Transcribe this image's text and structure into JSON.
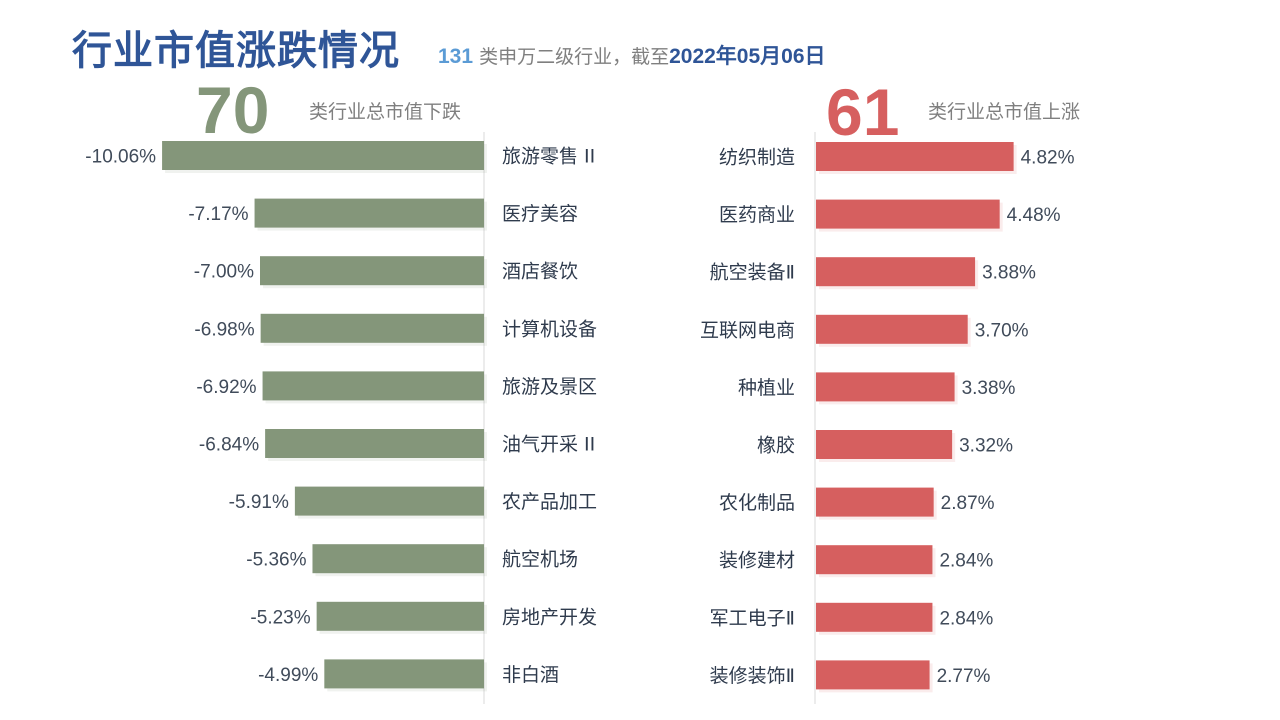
{
  "header": {
    "title": "行业市值涨跌情况",
    "count": "131",
    "subtitle_mid": " 类申万二级行业，截至",
    "date": "2022年05月06日"
  },
  "summary": {
    "down_count": "70",
    "down_caption": "类行业总市值下跌",
    "up_count": "61",
    "up_caption": "类行业总市值上涨"
  },
  "colors": {
    "title": "#2f5597",
    "down_bar": "#84967a",
    "up_bar": "#d65f5f"
  },
  "chart_data": [
    {
      "type": "bar",
      "orientation": "horizontal",
      "categories": [
        "旅游零售 II",
        "医疗美容",
        "酒店餐饮",
        "计算机设备",
        "旅游及景区",
        "油气开采 II",
        "农产品加工",
        "航空机场",
        "房地产开发",
        "非白酒"
      ],
      "values": [
        -10.06,
        -7.17,
        -7.0,
        -6.98,
        -6.92,
        -6.84,
        -5.91,
        -5.36,
        -5.23,
        -4.99
      ],
      "labels": [
        "-10.06%",
        "-7.17%",
        "-7.00%",
        "-6.98%",
        "-6.92%",
        "-6.84%",
        "-5.91%",
        "-5.36%",
        "-5.23%",
        "-4.99%"
      ],
      "color": "#84967a"
    },
    {
      "type": "bar",
      "orientation": "horizontal",
      "categories": [
        "纺织制造",
        "医药商业",
        "航空装备Ⅱ",
        "互联网电商",
        "种植业",
        "橡胶",
        "农化制品",
        "装修建材",
        "军工电子Ⅱ",
        "装修装饰Ⅱ"
      ],
      "values": [
        4.82,
        4.48,
        3.88,
        3.7,
        3.38,
        3.32,
        2.87,
        2.84,
        2.84,
        2.77
      ],
      "labels": [
        "4.82%",
        "4.48%",
        "3.88%",
        "3.70%",
        "3.38%",
        "3.32%",
        "2.87%",
        "2.84%",
        "2.84%",
        "2.77%"
      ],
      "color": "#d65f5f"
    }
  ]
}
